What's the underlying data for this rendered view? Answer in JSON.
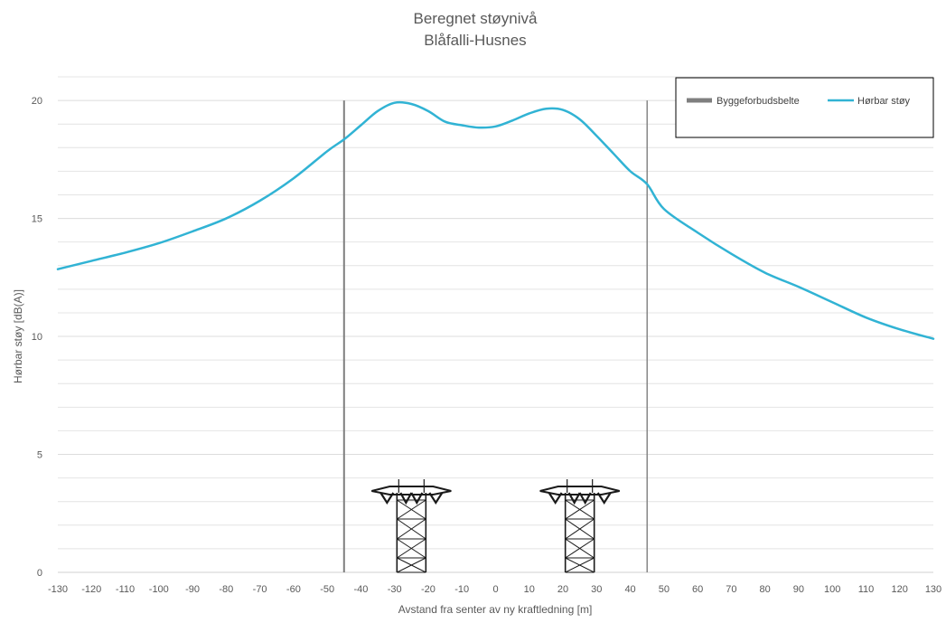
{
  "chart_data": {
    "type": "line",
    "title": "Beregnet støynivå",
    "subtitle": "Blåfalli-Husnes",
    "xlabel": "Avstand fra senter av ny kraftledning [m]",
    "ylabel": "Hørbar støy [dB(A)]",
    "xlim": [
      -130,
      130
    ],
    "ylim": [
      0,
      21
    ],
    "x_ticks": [
      -130,
      -120,
      -110,
      -100,
      -90,
      -80,
      -70,
      -60,
      -50,
      -40,
      -30,
      -20,
      -10,
      0,
      10,
      20,
      30,
      40,
      50,
      60,
      70,
      80,
      90,
      100,
      110,
      120,
      130
    ],
    "y_ticks": [
      0,
      5,
      10,
      15,
      20
    ],
    "y_minor_step": 1,
    "grid": true,
    "legend_position": "top-right",
    "legend": [
      {
        "label": "Byggeforbudsbelte",
        "color": "#7f7f7f"
      },
      {
        "label": "Hørbar støy",
        "color": "#31b3d4"
      }
    ],
    "colors": {
      "series": "#31b3d4",
      "boundary": "#7f7f7f",
      "grid": "#e4e4e4",
      "text": "#595959",
      "tower": "#1a1a1a"
    },
    "series": [
      {
        "name": "Hørbar støy",
        "x": [
          -130,
          -120,
          -110,
          -100,
          -90,
          -80,
          -70,
          -60,
          -50,
          -45,
          -40,
          -35,
          -30,
          -25,
          -20,
          -15,
          -10,
          -5,
          0,
          5,
          10,
          15,
          20,
          25,
          30,
          35,
          40,
          45,
          50,
          60,
          70,
          80,
          90,
          100,
          110,
          120,
          130
        ],
        "y": [
          12.85,
          13.2,
          13.55,
          13.95,
          14.45,
          15.0,
          15.75,
          16.7,
          17.85,
          18.35,
          18.95,
          19.55,
          19.9,
          19.85,
          19.55,
          19.1,
          18.95,
          18.85,
          18.9,
          19.15,
          19.45,
          19.65,
          19.6,
          19.2,
          18.5,
          17.75,
          17.0,
          16.45,
          15.4,
          14.4,
          13.5,
          12.7,
          12.1,
          11.45,
          10.8,
          10.3,
          9.9
        ]
      },
      {
        "name": "Byggeforbudsbelte",
        "boundaries_x": [
          -45,
          45
        ]
      }
    ],
    "towers_x": [
      -25,
      25
    ]
  }
}
